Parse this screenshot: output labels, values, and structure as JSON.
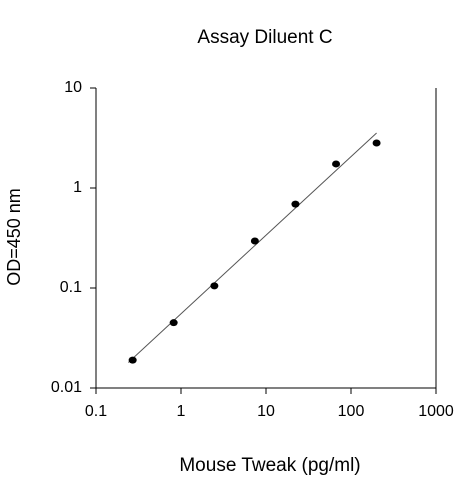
{
  "chart_data": {
    "type": "scatter",
    "title": "Assay Diluent C",
    "x_label": "Mouse Tweak (pg/ml)",
    "y_label": "OD=450 nm",
    "x": [
      0.27,
      0.82,
      2.47,
      7.4,
      22.2,
      66.7,
      200
    ],
    "values": [
      0.019,
      0.045,
      0.105,
      0.295,
      0.69,
      1.74,
      2.82
    ],
    "color": "#000000",
    "fit_line": {
      "x": [
        0.24,
        200
      ],
      "y": [
        0.018,
        3.55
      ],
      "color": "#555555"
    },
    "xlim": [
      0.1,
      1000
    ],
    "xticks": [
      0.1,
      1,
      10,
      100,
      1000
    ],
    "ylim": [
      0.01,
      10
    ],
    "yticks": [
      0.01,
      0.1,
      1,
      10
    ],
    "x_log": true,
    "y_log": true,
    "grid": false
  }
}
